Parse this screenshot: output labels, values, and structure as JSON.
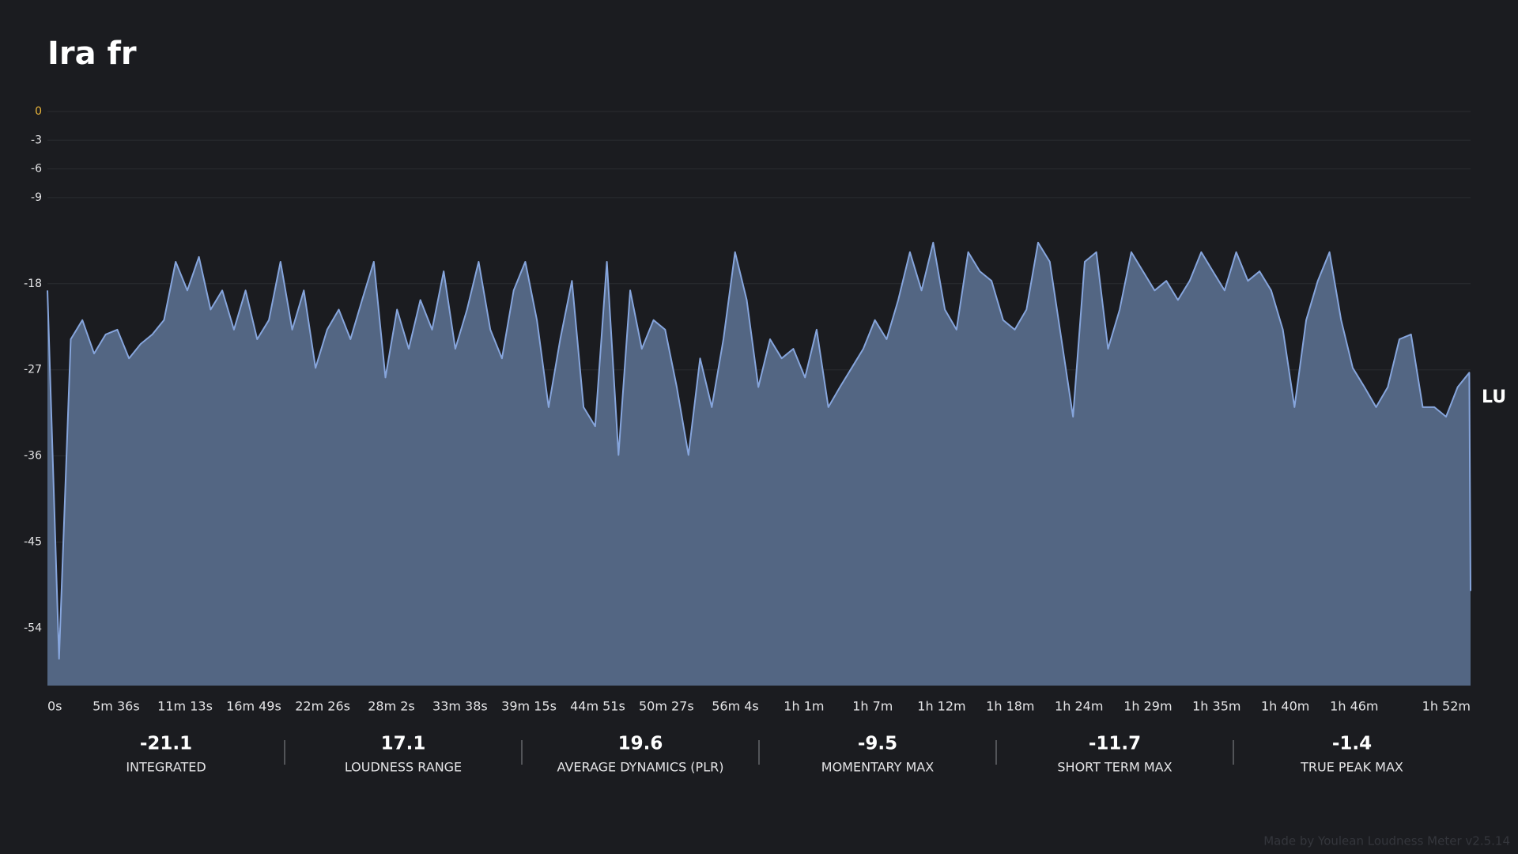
{
  "chart_data": {
    "type": "area",
    "title": "Ira fr",
    "unit_label": "LU",
    "x": [
      0,
      57,
      114,
      171,
      228,
      285,
      342,
      399,
      456,
      513,
      570,
      627,
      684,
      741,
      798,
      855,
      912,
      969,
      1026,
      1083,
      1140,
      1197,
      1254,
      1311,
      1368,
      1425,
      1482,
      1539,
      1596,
      1653,
      1710,
      1767,
      1824,
      1881,
      1938,
      1995,
      2052,
      2109,
      2166,
      2223,
      2280,
      2337,
      2394,
      2451,
      2508,
      2565,
      2622,
      2679,
      2736,
      2793,
      2850,
      2907,
      2964,
      3021,
      3078,
      3135,
      3192,
      3249,
      3306,
      3363,
      3420,
      3477,
      3534,
      3591,
      3648,
      3705,
      3762,
      3819,
      3876,
      3933,
      3990,
      4047,
      4104,
      4161,
      4218,
      4275,
      4332,
      4389,
      4446,
      4503,
      4560,
      4617,
      4674,
      4731,
      4788,
      4845,
      4902,
      4959,
      5016,
      5073,
      5130,
      5187,
      5244,
      5301,
      5358,
      5415,
      5472,
      5529,
      5586,
      5643,
      5700,
      5757,
      5814,
      5871,
      5928,
      5985,
      6042,
      6099,
      6156,
      6213,
      6270,
      6327,
      6384,
      6441,
      6498,
      6555,
      6612,
      6669,
      6726,
      6783,
      6840,
      6897,
      6954,
      6960
    ],
    "series": [
      {
        "color": "#86a5dc",
        "fill": "#536683",
        "values": [
          -18.7,
          -57.2,
          -23.8,
          -21.8,
          -25.3,
          -23.3,
          -22.8,
          -25.8,
          -24.3,
          -23.3,
          -21.8,
          -15.7,
          -18.7,
          -15.2,
          -20.7,
          -18.7,
          -22.8,
          -18.7,
          -23.8,
          -21.8,
          -15.7,
          -22.8,
          -18.7,
          -26.8,
          -22.8,
          -20.7,
          -23.8,
          -19.7,
          -15.7,
          -27.8,
          -20.7,
          -24.8,
          -19.7,
          -22.8,
          -16.7,
          -24.8,
          -20.7,
          -15.7,
          -22.8,
          -25.8,
          -18.7,
          -15.7,
          -21.8,
          -30.9,
          -23.8,
          -17.7,
          -30.9,
          -32.9,
          -15.7,
          -35.9,
          -18.7,
          -24.8,
          -21.8,
          -22.8,
          -28.8,
          -35.9,
          -25.8,
          -30.9,
          -23.8,
          -14.7,
          -19.7,
          -28.8,
          -23.8,
          -25.8,
          -24.8,
          -27.8,
          -22.8,
          -30.9,
          -28.8,
          -26.8,
          -24.8,
          -21.8,
          -23.8,
          -19.7,
          -14.7,
          -18.7,
          -13.7,
          -20.7,
          -22.8,
          -14.7,
          -16.7,
          -17.7,
          -21.8,
          -22.8,
          -20.7,
          -13.7,
          -15.7,
          -23.8,
          -31.9,
          -15.7,
          -14.7,
          -24.8,
          -20.7,
          -14.7,
          -16.7,
          -18.7,
          -17.7,
          -19.7,
          -17.7,
          -14.7,
          -16.7,
          -18.7,
          -14.7,
          -17.7,
          -16.7,
          -18.7,
          -22.8,
          -30.9,
          -21.8,
          -17.7,
          -14.7,
          -21.8,
          -26.8,
          -28.8,
          -30.9,
          -28.8,
          -23.8,
          -23.3,
          -30.9,
          -30.9,
          -31.9,
          -28.8,
          -27.3,
          -50.1
        ]
      }
    ],
    "xlim": [
      0,
      6960
    ],
    "xticks": [
      {
        "value": 0,
        "label": "0s"
      },
      {
        "value": 336,
        "label": "5m 36s"
      },
      {
        "value": 673,
        "label": "11m 13s"
      },
      {
        "value": 1009,
        "label": "16m 49s"
      },
      {
        "value": 1346,
        "label": "22m 26s"
      },
      {
        "value": 1682,
        "label": "28m 2s"
      },
      {
        "value": 2018,
        "label": "33m 38s"
      },
      {
        "value": 2355,
        "label": "39m 15s"
      },
      {
        "value": 2691,
        "label": "44m 51s"
      },
      {
        "value": 3027,
        "label": "50m 27s"
      },
      {
        "value": 3364,
        "label": "56m 4s"
      },
      {
        "value": 3700,
        "label": "1h 1m"
      },
      {
        "value": 4036,
        "label": "1h 7m"
      },
      {
        "value": 4373,
        "label": "1h 12m"
      },
      {
        "value": 4709,
        "label": "1h 18m"
      },
      {
        "value": 5045,
        "label": "1h 24m"
      },
      {
        "value": 5382,
        "label": "1h 29m"
      },
      {
        "value": 5718,
        "label": "1h 35m"
      },
      {
        "value": 6054,
        "label": "1h 40m"
      },
      {
        "value": 6391,
        "label": "1h 46m"
      },
      {
        "value": 6727,
        "label": "1h 52m"
      }
    ],
    "ylim": [
      -60,
      0
    ],
    "yticks": [
      0,
      -3,
      -6,
      -9,
      -18,
      -27,
      -36,
      -45,
      -54
    ],
    "grid": true,
    "zero_label_color": "#e8b43a"
  },
  "stats": [
    {
      "value": -21.1,
      "label": "INTEGRATED"
    },
    {
      "value": 17.1,
      "label": "LOUDNESS RANGE"
    },
    {
      "value": 19.6,
      "label": "AVERAGE DYNAMICS (PLR)"
    },
    {
      "value": -9.5,
      "label": "MOMENTARY MAX"
    },
    {
      "value": -11.7,
      "label": "SHORT TERM MAX"
    },
    {
      "value": -1.4,
      "label": "TRUE PEAK MAX"
    }
  ],
  "footer": "Made by Youlean Loudness Meter v2.5.14"
}
